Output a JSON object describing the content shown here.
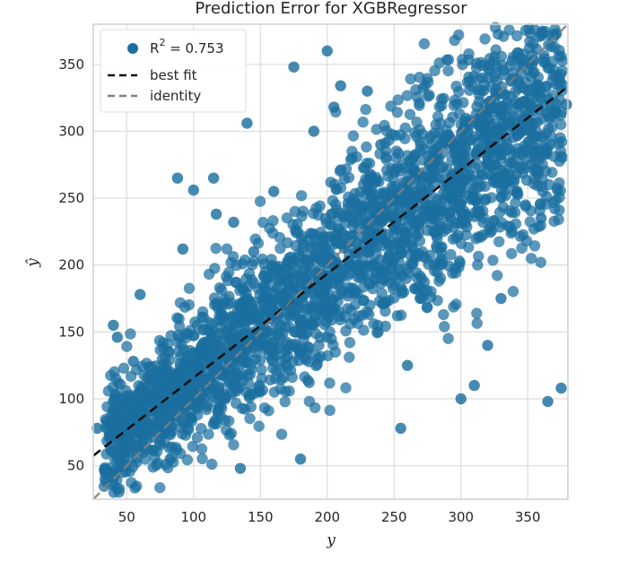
{
  "chart_data": {
    "type": "scatter",
    "title": "Prediction Error for XGBRegressor",
    "xlabel": "y",
    "ylabel": "ŷ",
    "xlim": [
      25,
      380
    ],
    "ylim": [
      25,
      380
    ],
    "xticks": [
      50,
      100,
      150,
      200,
      250,
      300,
      350
    ],
    "yticks": [
      50,
      100,
      150,
      200,
      250,
      300,
      350
    ],
    "grid": true,
    "legend_position": "top-left",
    "colors": {
      "points": "#1b6f9f",
      "best_fit": "#111111",
      "identity": "#808080",
      "grid": "#dcdcdc",
      "frame": "#cfcfcf"
    },
    "legend": {
      "points_label_prefix": "R",
      "points_label_sup": "2",
      "points_label_value": " = 0.753",
      "best_fit_label": "best fit",
      "identity_label": "identity"
    },
    "series": [
      {
        "label": "R2 = 0.753",
        "kind": "scatter",
        "approx_center_trend": {
          "slope": 0.78,
          "intercept": 38
        },
        "sample_points": [
          [
            28,
            78
          ],
          [
            40,
            155
          ],
          [
            43,
            146
          ],
          [
            45,
            88
          ],
          [
            55,
            128
          ],
          [
            60,
            178
          ],
          [
            72,
            75
          ],
          [
            88,
            265
          ],
          [
            92,
            212
          ],
          [
            100,
            256
          ],
          [
            115,
            265
          ],
          [
            117,
            238
          ],
          [
            130,
            232
          ],
          [
            135,
            48
          ],
          [
            140,
            306
          ],
          [
            145,
            210
          ],
          [
            160,
            255
          ],
          [
            175,
            348
          ],
          [
            180,
            55
          ],
          [
            190,
            300
          ],
          [
            200,
            360
          ],
          [
            205,
            318
          ],
          [
            210,
            334
          ],
          [
            230,
            330
          ],
          [
            240,
            290
          ],
          [
            255,
            78
          ],
          [
            260,
            125
          ],
          [
            270,
            175
          ],
          [
            280,
            200
          ],
          [
            300,
            100
          ],
          [
            310,
            110
          ],
          [
            320,
            140
          ],
          [
            330,
            175
          ],
          [
            350,
            320
          ],
          [
            355,
            285
          ],
          [
            360,
            235
          ],
          [
            365,
            98
          ],
          [
            375,
            108
          ],
          [
            379,
            320
          ],
          [
            150,
            150
          ],
          [
            200,
            190
          ],
          [
            250,
            235
          ],
          [
            300,
            280
          ],
          [
            100,
            110
          ],
          [
            75,
            90
          ],
          [
            125,
            130
          ],
          [
            175,
            165
          ],
          [
            225,
            210
          ],
          [
            275,
            255
          ],
          [
            325,
            300
          ],
          [
            350,
            330
          ]
        ]
      },
      {
        "label": "best fit",
        "kind": "line",
        "x": [
          25,
          380
        ],
        "y": [
          57.5,
          333.3
        ]
      },
      {
        "label": "identity",
        "kind": "line",
        "x": [
          25,
          380
        ],
        "y": [
          25,
          380
        ]
      }
    ]
  }
}
